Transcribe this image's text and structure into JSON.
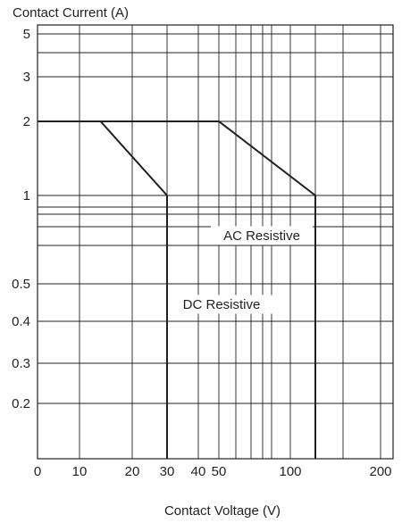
{
  "chart_data": {
    "type": "line",
    "title": "",
    "ylabel": "Contact Current (A)",
    "xlabel": "Contact Voltage (V)",
    "y_ticks": [
      {
        "value": 5,
        "label": "5"
      },
      {
        "value": 3,
        "label": "3"
      },
      {
        "value": 2,
        "label": "2"
      },
      {
        "value": 1,
        "label": "1"
      },
      {
        "value": 0.5,
        "label": "0.5"
      },
      {
        "value": 0.4,
        "label": "0.4"
      },
      {
        "value": 0.3,
        "label": "0.3"
      },
      {
        "value": 0.2,
        "label": "0.2"
      }
    ],
    "x_ticks": [
      {
        "value": 0,
        "label": "0"
      },
      {
        "value": 10,
        "label": "10"
      },
      {
        "value": 20,
        "label": "20"
      },
      {
        "value": 30,
        "label": "30"
      },
      {
        "value": 40,
        "label": "40"
      },
      {
        "value": 50,
        "label": "50"
      },
      {
        "value": 100,
        "label": "100"
      },
      {
        "value": 200,
        "label": "200"
      }
    ],
    "grid": true,
    "series": [
      {
        "name": "DC Resistive",
        "points": [
          [
            0,
            2
          ],
          [
            14,
            2
          ],
          [
            30,
            1
          ],
          [
            30,
            0.1
          ]
        ]
      },
      {
        "name": "AC Resistive",
        "points": [
          [
            0,
            2
          ],
          [
            50,
            2
          ],
          [
            125,
            1
          ],
          [
            125,
            0.1
          ]
        ]
      }
    ]
  }
}
